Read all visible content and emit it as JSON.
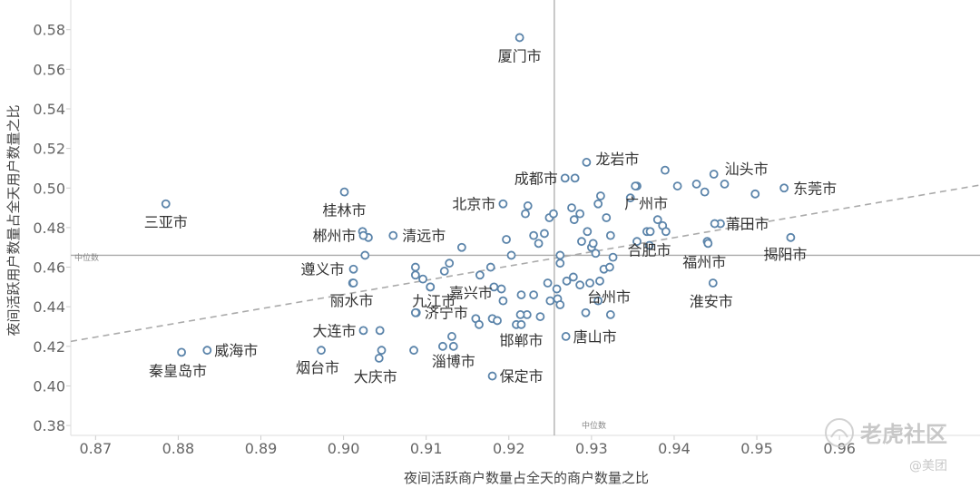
{
  "chart_data": {
    "type": "scatter",
    "xlabel": "夜间活跃商户数量占全天的商户数量之比",
    "ylabel": "夜间活跃用户数量占全天用户数量之比",
    "xlim": [
      0.867,
      0.977
    ],
    "ylim": [
      0.375,
      0.595
    ],
    "x_ticks": [
      0.87,
      0.88,
      0.89,
      0.9,
      0.91,
      0.92,
      0.93,
      0.94,
      0.95,
      0.96
    ],
    "x_tick_labels": [
      "0.87",
      "0.88",
      "0.89",
      "0.90",
      "0.91",
      "0.92",
      "0.93",
      "0.94",
      "0.95",
      "0.96"
    ],
    "y_ticks": [
      0.38,
      0.4,
      0.42,
      0.44,
      0.46,
      0.48,
      0.5,
      0.52,
      0.54,
      0.56,
      0.58
    ],
    "y_tick_labels": [
      "0.38",
      "0.40",
      "0.42",
      "0.44",
      "0.46",
      "0.48",
      "0.50",
      "0.52",
      "0.54",
      "0.56",
      "0.58"
    ],
    "median_x": 0.9255,
    "median_y": 0.466,
    "median_label_x": "中位数",
    "median_label_y": "中位数",
    "trendline": {
      "x": [
        0.867,
        0.977
      ],
      "y": [
        0.4225,
        0.5015
      ]
    },
    "colors": {
      "point": "#5b84aa",
      "median": "#aaaaaa",
      "trend": "#aaaaaa"
    },
    "labeled_points": [
      {
        "name": "厦门市",
        "x": 0.9213,
        "y": 0.576
      },
      {
        "name": "三亚市",
        "x": 0.8785,
        "y": 0.492
      },
      {
        "name": "桂林市",
        "x": 0.9001,
        "y": 0.498
      },
      {
        "name": "郴州市",
        "x": 0.9024,
        "y": 0.476
      },
      {
        "name": "清远市",
        "x": 0.906,
        "y": 0.476
      },
      {
        "name": "遵义市",
        "x": 0.9012,
        "y": 0.459
      },
      {
        "name": "丽水市",
        "x": 0.9012,
        "y": 0.452
      },
      {
        "name": "九江市",
        "x": 0.9105,
        "y": 0.45
      },
      {
        "name": "嘉兴市",
        "x": 0.9165,
        "y": 0.456
      },
      {
        "name": "北京市",
        "x": 0.9193,
        "y": 0.492
      },
      {
        "name": "成都市",
        "x": 0.9268,
        "y": 0.505
      },
      {
        "name": "龙岩市",
        "x": 0.9294,
        "y": 0.513
      },
      {
        "name": "广州市",
        "x": 0.9353,
        "y": 0.501
      },
      {
        "name": "汕头市",
        "x": 0.9448,
        "y": 0.507
      },
      {
        "name": "东莞市",
        "x": 0.9533,
        "y": 0.5
      },
      {
        "name": "莆田市",
        "x": 0.9449,
        "y": 0.482
      },
      {
        "name": "揭阳市",
        "x": 0.9541,
        "y": 0.475
      },
      {
        "name": "合肥市",
        "x": 0.9371,
        "y": 0.478
      },
      {
        "name": "福州市",
        "x": 0.9441,
        "y": 0.472
      },
      {
        "name": "台州市",
        "x": 0.931,
        "y": 0.453
      },
      {
        "name": "淮安市",
        "x": 0.9447,
        "y": 0.452
      },
      {
        "name": "唐山市",
        "x": 0.9269,
        "y": 0.425
      },
      {
        "name": "邯郸市",
        "x": 0.9215,
        "y": 0.431
      },
      {
        "name": "保定市",
        "x": 0.918,
        "y": 0.405
      },
      {
        "name": "淄博市",
        "x": 0.9133,
        "y": 0.42
      },
      {
        "name": "济宁市",
        "x": 0.9087,
        "y": 0.437
      },
      {
        "name": "大庆市",
        "x": 0.9043,
        "y": 0.414
      },
      {
        "name": "大连市",
        "x": 0.9024,
        "y": 0.428
      },
      {
        "name": "烟台市",
        "x": 0.8973,
        "y": 0.418
      },
      {
        "name": "秦皇岛市",
        "x": 0.8804,
        "y": 0.417
      },
      {
        "name": "威海市",
        "x": 0.8835,
        "y": 0.418
      }
    ],
    "other_points": [
      [
        0.9023,
        0.478
      ],
      [
        0.903,
        0.475
      ],
      [
        0.9026,
        0.466
      ],
      [
        0.9011,
        0.452
      ],
      [
        0.9087,
        0.46
      ],
      [
        0.9087,
        0.456
      ],
      [
        0.9096,
        0.454
      ],
      [
        0.9105,
        0.45
      ],
      [
        0.9122,
        0.458
      ],
      [
        0.9128,
        0.462
      ],
      [
        0.9143,
        0.47
      ],
      [
        0.9178,
        0.46
      ],
      [
        0.9182,
        0.45
      ],
      [
        0.9191,
        0.449
      ],
      [
        0.9193,
        0.443
      ],
      [
        0.9197,
        0.474
      ],
      [
        0.9203,
        0.466
      ],
      [
        0.922,
        0.487
      ],
      [
        0.9223,
        0.491
      ],
      [
        0.923,
        0.476
      ],
      [
        0.9236,
        0.472
      ],
      [
        0.9243,
        0.477
      ],
      [
        0.9249,
        0.485
      ],
      [
        0.9254,
        0.487
      ],
      [
        0.9262,
        0.466
      ],
      [
        0.9262,
        0.462
      ],
      [
        0.928,
        0.505
      ],
      [
        0.9276,
        0.49
      ],
      [
        0.9286,
        0.487
      ],
      [
        0.9279,
        0.484
      ],
      [
        0.9288,
        0.473
      ],
      [
        0.9295,
        0.478
      ],
      [
        0.93,
        0.47
      ],
      [
        0.9302,
        0.472
      ],
      [
        0.9305,
        0.467
      ],
      [
        0.9308,
        0.492
      ],
      [
        0.9311,
        0.496
      ],
      [
        0.9318,
        0.485
      ],
      [
        0.9323,
        0.476
      ],
      [
        0.9326,
        0.465
      ],
      [
        0.9298,
        0.452
      ],
      [
        0.9315,
        0.459
      ],
      [
        0.9322,
        0.46
      ],
      [
        0.9247,
        0.452
      ],
      [
        0.9259,
        0.444
      ],
      [
        0.9262,
        0.441
      ],
      [
        0.927,
        0.453
      ],
      [
        0.9278,
        0.455
      ],
      [
        0.9286,
        0.451
      ],
      [
        0.9293,
        0.437
      ],
      [
        0.9308,
        0.443
      ],
      [
        0.9323,
        0.436
      ],
      [
        0.9215,
        0.446
      ],
      [
        0.9222,
        0.436
      ],
      [
        0.923,
        0.446
      ],
      [
        0.9238,
        0.435
      ],
      [
        0.925,
        0.443
      ],
      [
        0.9258,
        0.449
      ],
      [
        0.9209,
        0.431
      ],
      [
        0.9214,
        0.436
      ],
      [
        0.918,
        0.434
      ],
      [
        0.9186,
        0.433
      ],
      [
        0.916,
        0.434
      ],
      [
        0.9164,
        0.431
      ],
      [
        0.912,
        0.42
      ],
      [
        0.9131,
        0.425
      ],
      [
        0.9046,
        0.418
      ],
      [
        0.9044,
        0.428
      ],
      [
        0.9085,
        0.418
      ],
      [
        0.9088,
        0.437
      ],
      [
        0.9347,
        0.495
      ],
      [
        0.9355,
        0.501
      ],
      [
        0.9367,
        0.478
      ],
      [
        0.938,
        0.484
      ],
      [
        0.9386,
        0.481
      ],
      [
        0.9389,
        0.509
      ],
      [
        0.9404,
        0.501
      ],
      [
        0.9427,
        0.502
      ],
      [
        0.9437,
        0.498
      ],
      [
        0.944,
        0.473
      ],
      [
        0.9456,
        0.482
      ],
      [
        0.9461,
        0.502
      ],
      [
        0.9498,
        0.497
      ],
      [
        0.9355,
        0.473
      ],
      [
        0.937,
        0.471
      ],
      [
        0.939,
        0.478
      ]
    ]
  },
  "watermark": {
    "name": "老虎社区",
    "handle": "@美团"
  }
}
